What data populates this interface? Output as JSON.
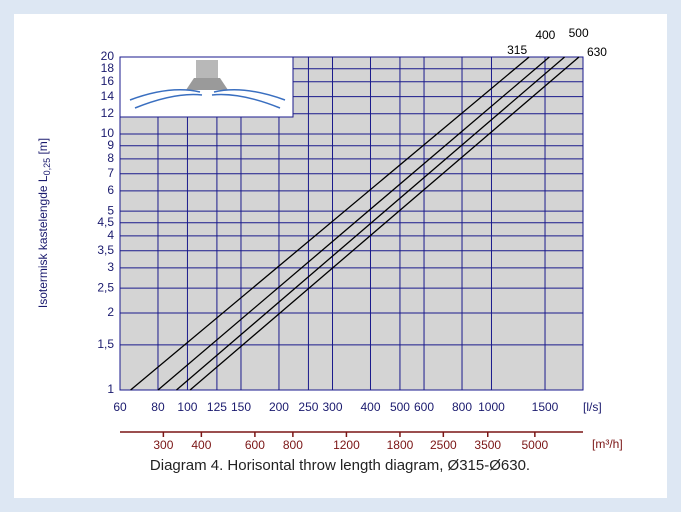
{
  "chart_data": {
    "type": "line",
    "caption": "Diagram 4. Horisontal throw length diagram, Ø315-Ø630.",
    "y_label": "Isotermisk kastelengde L",
    "y_label_sub": "0,25",
    "y_label_unit": "[m]",
    "x_label": "[l/s]",
    "x2_label": "[m³/h]",
    "xlog": true,
    "ylog": true,
    "grid": true,
    "xlim": [
      60,
      2000
    ],
    "xticks": [
      60,
      80,
      100,
      125,
      150,
      200,
      250,
      300,
      400,
      500,
      600,
      800,
      1000,
      1500
    ],
    "x2lim": [
      216,
      7200
    ],
    "x2ticks": [
      300,
      400,
      600,
      800,
      1200,
      1800,
      2500,
      3500,
      5000
    ],
    "ylim": [
      1,
      20
    ],
    "yticks": [
      1,
      {
        "value": 1.5,
        "label": "1,5"
      },
      2,
      {
        "value": 2.5,
        "label": "2,5"
      },
      3,
      {
        "value": 3.5,
        "label": "3,5"
      },
      4,
      {
        "value": 4.5,
        "label": "4,5"
      },
      5,
      6,
      7,
      8,
      9,
      10,
      12,
      14,
      16,
      18,
      20
    ],
    "series": [
      {
        "name": "315",
        "color": "#000000",
        "x": [
          65,
          1330
        ],
        "values": [
          1,
          20
        ]
      },
      {
        "name": "400",
        "color": "#000000",
        "x": [
          80,
          1550
        ],
        "values": [
          1,
          20
        ]
      },
      {
        "name": "500",
        "color": "#000000",
        "x": [
          92,
          1740
        ],
        "values": [
          1,
          20
        ]
      },
      {
        "name": "630",
        "color": "#000000",
        "x": [
          102,
          1940
        ],
        "values": [
          1,
          20
        ]
      }
    ]
  }
}
